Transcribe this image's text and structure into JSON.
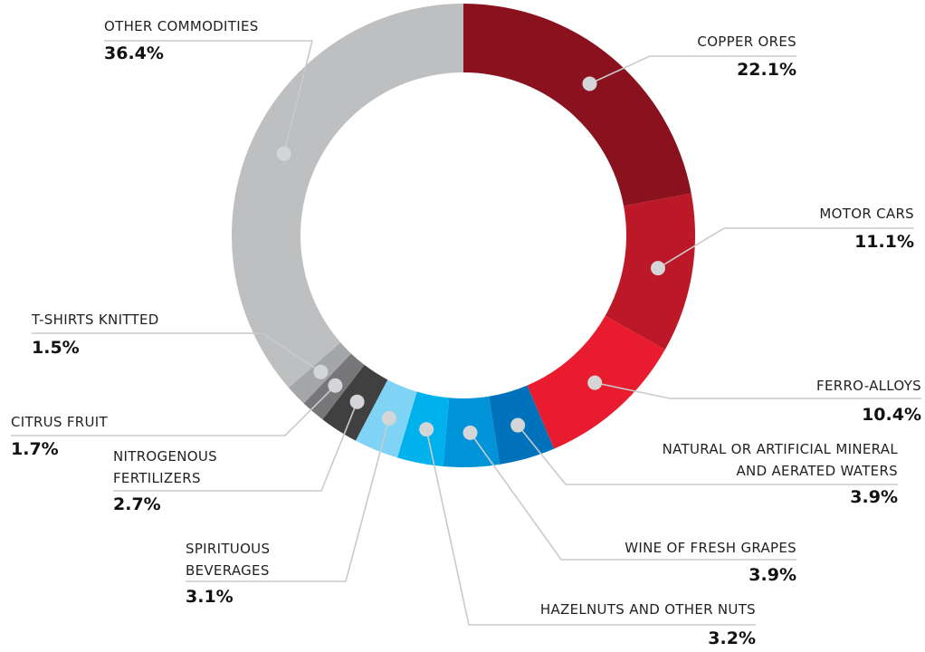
{
  "chart_data": {
    "type": "donut",
    "categories": [
      "COPPER ORES",
      "MOTOR CARS",
      "FERRO-ALLOYS",
      "NATURAL OR ARTIFICIAL MINERAL\nAND AERATED WATERS",
      "WINE OF FRESH GRAPES",
      "HAZELNUTS AND OTHER NUTS",
      "SPIRITUOUS\nBEVERAGES",
      "NITROGENOUS\nFERTILIZERS",
      "CITRUS FRUIT",
      "T-SHIRTS KNITTED",
      "OTHER COMMODITIES"
    ],
    "values": [
      22.1,
      11.1,
      10.4,
      3.9,
      3.9,
      3.2,
      3.1,
      2.7,
      1.7,
      1.5,
      36.4
    ],
    "value_labels": [
      "22.1%",
      "11.1%",
      "10.4%",
      "3.9%",
      "3.9%",
      "3.2%",
      "3.1%",
      "2.7%",
      "1.7%",
      "1.5%",
      "36.4%"
    ],
    "colors": [
      "#8a111e",
      "#bd1827",
      "#e81c2e",
      "#0072bb",
      "#0093d8",
      "#00b2ec",
      "#7fd3f5",
      "#404041",
      "#77777a",
      "#a5a6a8",
      "#bebfc1"
    ]
  }
}
